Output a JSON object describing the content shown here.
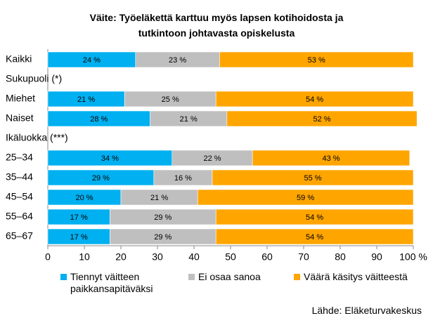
{
  "chart_data": {
    "type": "stacked_bar_horizontal",
    "title": "Väite: Työeläkettä karttuu myös lapsen kotihoidosta ja tutkintoon johtavasta opiskelusta",
    "categories": [
      "Kaikki",
      "Sukupuoli (*)",
      "Miehet",
      "Naiset",
      "Ikäluokka (***)",
      "25–34",
      "35–44",
      "45–54",
      "55–64",
      "65–67"
    ],
    "series": [
      {
        "name": "Tiennyt väitteen paikkansapitäväksi",
        "color": "#00b0f0",
        "values": [
          24,
          null,
          21,
          28,
          null,
          34,
          29,
          20,
          17,
          17
        ],
        "value_labels": [
          "24 %",
          null,
          "21 %",
          "28 %",
          null,
          "34 %",
          "29 %",
          "20 %",
          "17 %",
          "17 %"
        ]
      },
      {
        "name": "Ei osaa sanoa",
        "color": "#bfbfbf",
        "values": [
          23,
          null,
          25,
          21,
          null,
          22,
          16,
          21,
          29,
          29
        ],
        "value_labels": [
          "23 %",
          null,
          "25 %",
          "21 %",
          null,
          "22 %",
          "16 %",
          "21 %",
          "29 %",
          "29 %"
        ]
      },
      {
        "name": "Väärä käsitys väitteestä",
        "color": "#ffa500",
        "values": [
          53,
          null,
          54,
          52,
          null,
          43,
          55,
          59,
          54,
          54
        ],
        "value_labels": [
          "53 %",
          null,
          "54 %",
          "52 %",
          null,
          "43 %",
          "55 %",
          "59 %",
          "54 %",
          "54 %"
        ]
      }
    ],
    "xlim": [
      0,
      100
    ],
    "xticks": [
      0,
      10,
      20,
      30,
      40,
      50,
      60,
      70,
      80,
      90,
      {
        "value": 100,
        "label": "100 %"
      }
    ],
    "grid": false,
    "source": "Lähde: Eläketurvakeskus"
  }
}
